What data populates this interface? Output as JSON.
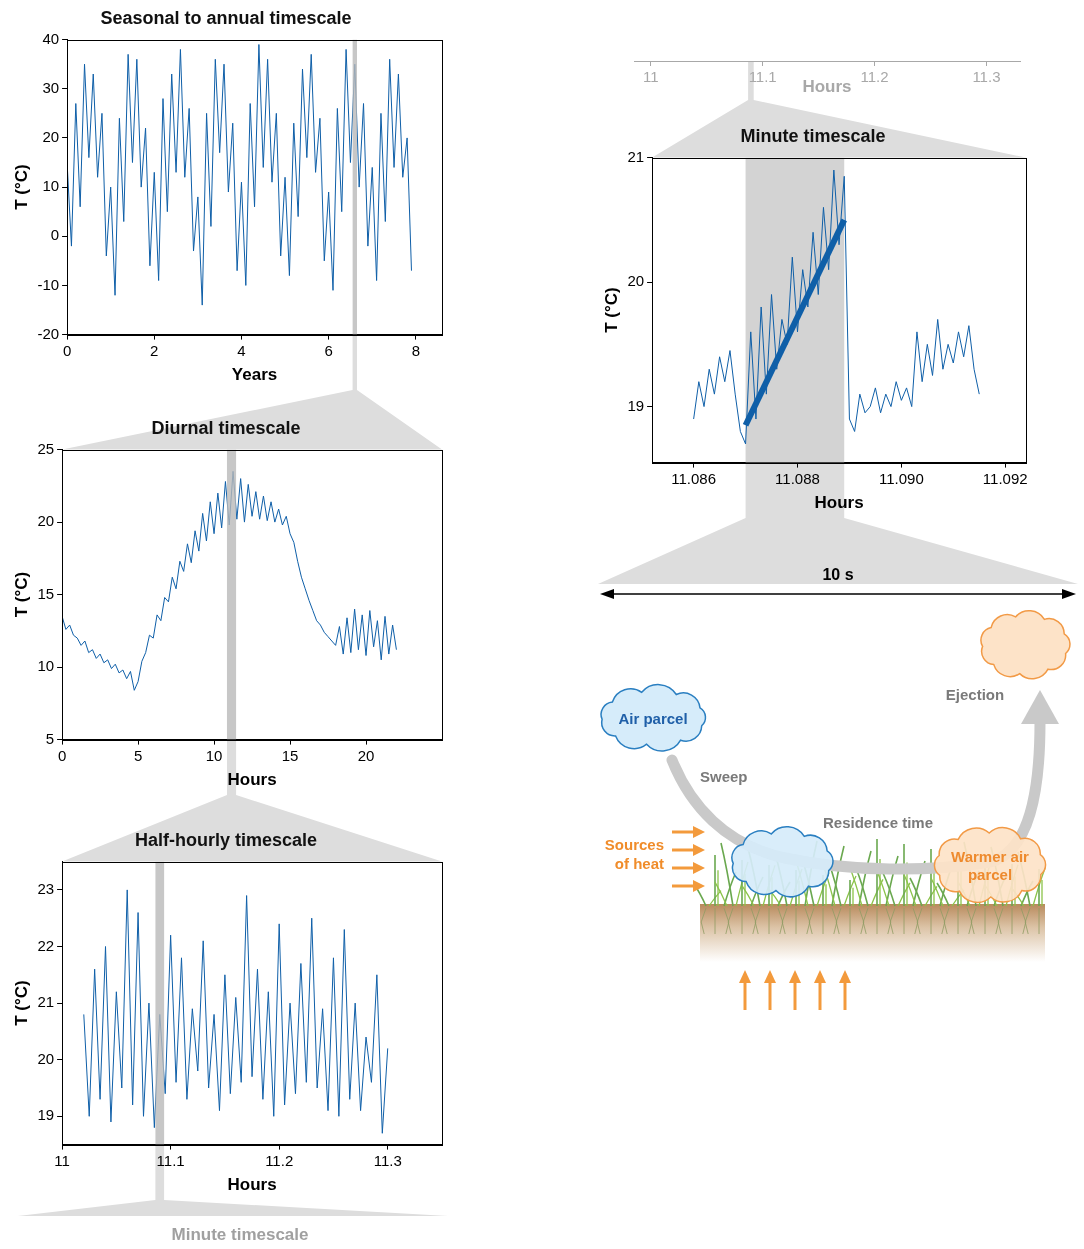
{
  "chart_data": [
    {
      "type": "line",
      "title": "Seasonal to annual timescale",
      "xlabel": "Years",
      "ylabel": "T (°C)",
      "x": [
        0,
        0.1,
        0.2,
        0.3,
        0.4,
        0.5,
        0.6,
        0.7,
        0.8,
        0.9,
        1,
        1.1,
        1.2,
        1.3,
        1.4,
        1.5,
        1.6,
        1.7,
        1.8,
        1.9,
        2,
        2.1,
        2.2,
        2.3,
        2.4,
        2.5,
        2.6,
        2.7,
        2.8,
        2.9,
        3,
        3.1,
        3.2,
        3.3,
        3.4,
        3.5,
        3.6,
        3.7,
        3.8,
        3.9,
        4,
        4.1,
        4.2,
        4.3,
        4.4,
        4.5,
        4.6,
        4.7,
        4.8,
        4.9,
        5,
        5.1,
        5.2,
        5.3,
        5.4,
        5.5,
        5.6,
        5.7,
        5.8,
        5.9,
        6,
        6.1,
        6.2,
        6.3,
        6.4,
        6.5,
        6.6,
        6.7,
        6.8,
        6.9,
        7,
        7.1,
        7.2,
        7.3,
        7.4,
        7.5,
        7.6,
        7.7,
        7.8,
        7.9
      ],
      "series": [
        {
          "color": "#0f5fa8",
          "values": [
            15,
            -2,
            27,
            6,
            35,
            16,
            33,
            12,
            25,
            -4,
            10,
            -12,
            24,
            3,
            37,
            15,
            36,
            10,
            22,
            -6,
            13,
            -9,
            28,
            5,
            33,
            13,
            38,
            12,
            26,
            -3,
            8,
            -14,
            25,
            2,
            36,
            17,
            35,
            9,
            23,
            -7,
            11,
            -10,
            27,
            6,
            39,
            14,
            36,
            11,
            25,
            -4,
            12,
            -8,
            23,
            4,
            34,
            16,
            37,
            13,
            24,
            -5,
            9,
            -11,
            26,
            5,
            38,
            15,
            35,
            10,
            27,
            -2,
            14,
            -9,
            25,
            3,
            36,
            14,
            33,
            12,
            20,
            -7
          ]
        }
      ],
      "xlim": [
        0,
        8.6
      ],
      "ylim": [
        -20,
        40
      ],
      "xticks": [
        0,
        2,
        4,
        6,
        8
      ],
      "yticks": [
        -20,
        -10,
        0,
        10,
        20,
        30,
        40
      ],
      "grid": false,
      "highlight": [
        6.55,
        6.65
      ]
    },
    {
      "type": "line",
      "title": "Diurnal timescale",
      "xlabel": "Hours",
      "ylabel": "T (°C)",
      "x": [
        0,
        0.25,
        0.5,
        0.75,
        1,
        1.25,
        1.5,
        1.75,
        2,
        2.25,
        2.5,
        2.75,
        3,
        3.25,
        3.5,
        3.75,
        4,
        4.25,
        4.5,
        4.75,
        5,
        5.25,
        5.5,
        5.75,
        6,
        6.25,
        6.5,
        6.75,
        7,
        7.25,
        7.5,
        7.75,
        8,
        8.25,
        8.5,
        8.75,
        9,
        9.25,
        9.5,
        9.75,
        10,
        10.25,
        10.5,
        10.75,
        11,
        11.25,
        11.5,
        11.75,
        12,
        12.25,
        12.5,
        12.75,
        13,
        13.25,
        13.5,
        13.75,
        14,
        14.25,
        14.5,
        14.75,
        15,
        15.25,
        15.5,
        15.75,
        16,
        16.25,
        16.5,
        16.75,
        17,
        17.25,
        17.5,
        17.75,
        18,
        18.25,
        18.5,
        18.75,
        19,
        19.25,
        19.5,
        19.75,
        20,
        20.25,
        20.5,
        20.75,
        21,
        21.25,
        21.5,
        21.75,
        22
      ],
      "series": [
        {
          "color": "#0f5fa8",
          "values": [
            13.5,
            12.6,
            12.9,
            12.2,
            12.0,
            11.5,
            11.8,
            11.0,
            11.2,
            10.6,
            10.9,
            10.3,
            10.5,
            9.9,
            10.2,
            9.6,
            9.8,
            9.2,
            9.7,
            8.4,
            9.0,
            10.4,
            11.0,
            12.2,
            12.0,
            13.6,
            13.2,
            14.8,
            14.5,
            16.2,
            15.4,
            17.3,
            16.6,
            18.5,
            17.2,
            19.4,
            18.0,
            20.6,
            18.7,
            21.4,
            19.2,
            22.0,
            19.6,
            22.8,
            19.8,
            23.5,
            20.2,
            23.0,
            20.0,
            22.6,
            20.4,
            22.1,
            20.2,
            21.8,
            20.1,
            21.4,
            20.0,
            20.9,
            19.8,
            20.4,
            19.2,
            18.6,
            17.3,
            16.2,
            15.4,
            14.6,
            13.9,
            13.2,
            12.9,
            12.4,
            12.1,
            11.8,
            11.5,
            12.8,
            10.9,
            13.4,
            11.0,
            14.0,
            11.2,
            13.6,
            10.8,
            13.9,
            11.4,
            13.2,
            10.5,
            13.5,
            10.9,
            12.9,
            11.2
          ]
        }
      ],
      "xlim": [
        0,
        25
      ],
      "ylim": [
        5,
        25
      ],
      "xticks": [
        0,
        5,
        10,
        15,
        20
      ],
      "yticks": [
        5,
        10,
        15,
        20,
        25
      ],
      "grid": false,
      "highlight": [
        10.85,
        11.45
      ]
    },
    {
      "type": "line",
      "title": "Half-hourly timescale",
      "xlabel": "Hours",
      "ylabel": "T (°C)",
      "x": [
        11.02,
        11.025,
        11.03,
        11.035,
        11.04,
        11.045,
        11.05,
        11.055,
        11.06,
        11.065,
        11.07,
        11.075,
        11.08,
        11.085,
        11.09,
        11.095,
        11.1,
        11.105,
        11.11,
        11.115,
        11.12,
        11.125,
        11.13,
        11.135,
        11.14,
        11.145,
        11.15,
        11.155,
        11.16,
        11.165,
        11.17,
        11.175,
        11.18,
        11.185,
        11.19,
        11.195,
        11.2,
        11.205,
        11.21,
        11.215,
        11.22,
        11.225,
        11.23,
        11.235,
        11.24,
        11.245,
        11.25,
        11.255,
        11.26,
        11.265,
        11.27,
        11.275,
        11.28,
        11.285,
        11.29,
        11.295,
        11.3
      ],
      "series": [
        {
          "color": "#0f5fa8",
          "values": [
            20.8,
            19.0,
            21.6,
            19.3,
            22.0,
            18.9,
            21.2,
            19.5,
            23.0,
            19.2,
            22.6,
            19.0,
            21.0,
            18.8,
            20.8,
            19.4,
            22.2,
            19.6,
            21.8,
            19.3,
            20.9,
            19.8,
            22.1,
            19.5,
            20.8,
            19.1,
            21.5,
            19.4,
            21.1,
            19.6,
            22.9,
            19.7,
            21.6,
            19.3,
            21.2,
            19.0,
            22.4,
            19.2,
            21.0,
            19.4,
            21.7,
            19.6,
            22.5,
            19.5,
            20.9,
            19.1,
            21.8,
            19.0,
            22.3,
            19.3,
            21.0,
            19.1,
            20.4,
            19.6,
            21.5,
            18.7,
            20.2
          ]
        }
      ],
      "xlim": [
        11,
        11.35
      ],
      "ylim": [
        18.5,
        23.5
      ],
      "xticks": [
        11,
        11.1,
        11.2,
        11.3
      ],
      "yticks": [
        19,
        20,
        21,
        22,
        23
      ],
      "grid": false,
      "highlight": [
        11.086,
        11.094
      ]
    },
    {
      "type": "line",
      "title": "Minute timescale",
      "xlabel": "Hours",
      "ylabel": "T (°C)",
      "x": [
        11.086,
        11.0861,
        11.0862,
        11.0863,
        11.0864,
        11.0865,
        11.0866,
        11.0867,
        11.0868,
        11.0869,
        11.087,
        11.0871,
        11.0872,
        11.0873,
        11.0874,
        11.0875,
        11.0876,
        11.0877,
        11.0878,
        11.0879,
        11.088,
        11.0881,
        11.0882,
        11.0883,
        11.0884,
        11.0885,
        11.0886,
        11.0887,
        11.0888,
        11.0889,
        11.089,
        11.0891,
        11.0892,
        11.0893,
        11.0894,
        11.0895,
        11.0896,
        11.0897,
        11.0898,
        11.0899,
        11.09,
        11.0901,
        11.0902,
        11.0903,
        11.0904,
        11.0905,
        11.0906,
        11.0907,
        11.0908,
        11.0909,
        11.091,
        11.0911,
        11.0912,
        11.0913,
        11.0914,
        11.0915
      ],
      "series": [
        {
          "color": "#0f5fa8",
          "values": [
            18.9,
            19.2,
            19.0,
            19.3,
            19.1,
            19.4,
            19.2,
            19.45,
            19.1,
            18.8,
            18.7,
            19.6,
            18.9,
            19.8,
            19.1,
            19.9,
            19.3,
            19.7,
            19.5,
            20.2,
            19.6,
            20.1,
            19.8,
            20.4,
            19.9,
            20.6,
            20.1,
            20.9,
            20.3,
            20.85,
            18.9,
            18.8,
            19.1,
            18.95,
            19.0,
            19.15,
            18.95,
            19.1,
            19.0,
            19.2,
            19.05,
            19.15,
            19.0,
            19.6,
            19.2,
            19.5,
            19.25,
            19.7,
            19.3,
            19.5,
            19.35,
            19.6,
            19.4,
            19.65,
            19.3,
            19.1
          ]
        },
        {
          "color": "#0f5fa8",
          "line_style": "outlined",
          "x": [
            11.087,
            11.0889
          ],
          "values": [
            18.85,
            20.5
          ]
        }
      ],
      "xlim": [
        11.0852,
        11.0924
      ],
      "ylim": [
        18.55,
        21
      ],
      "xticks": [
        11.086,
        11.088,
        {
          "value": 11.09,
          "label": "11.090"
        },
        11.092
      ],
      "yticks": [
        19,
        20,
        21
      ],
      "grid": false,
      "highlight": [
        11.087,
        11.0889
      ]
    }
  ],
  "ghost_axis": {
    "xlim": [
      10.985,
      11.33
    ],
    "xticks": [
      11,
      11.1,
      11.2,
      11.3
    ],
    "xlabel": "Hours",
    "highlight": [
      11.087,
      11.092
    ]
  },
  "ghost_title": "Minute timescale",
  "diagram": {
    "span_label": "10 s",
    "air_parcel": "Air parcel",
    "sweep": "Sweep",
    "residence_time": "Residence time",
    "warmer_air_parcel": "Warmer air parcel",
    "ejection": "Ejection",
    "sources_of_heat": "Sources of heat"
  }
}
